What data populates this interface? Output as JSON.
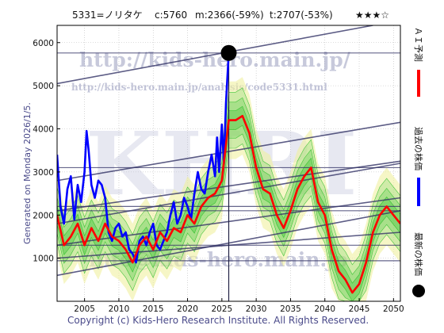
{
  "header": {
    "stock": "5331=ノリタケ",
    "close": "c:5760",
    "m_value": "m:2366(-59%)",
    "t_value": "t:2707(-53%)",
    "rating": "★★★☆"
  },
  "side_label": "Generated on Monday 2026/1/5.",
  "watermarks": {
    "url_main": "http://kids-hero.main.jp/",
    "url_analysis": "http://kids-hero.main.jp/analysis/code5331.html",
    "logo_text": "KHRI",
    "email": "info@kids-hero.main.jp"
  },
  "copyright": "Copyright (c) Kids-Hero Research Institute. All Rights Reserved.",
  "legend": [
    {
      "label": "ＡＩ予測",
      "color": "#ff0000",
      "marker": "line"
    },
    {
      "label": "過去の株価",
      "color": "#0000ff",
      "marker": "line"
    },
    {
      "label": "最新の株価",
      "color": "#000000",
      "marker": "dot"
    }
  ],
  "colors": {
    "ai_forecast": "#ff0000",
    "past_price": "#0000ff",
    "latest_marker": "#000000",
    "trend_lines": "#333366",
    "band_green": "#22bb22",
    "band_yellow": "#f0f0a0"
  },
  "chart_data": {
    "type": "line",
    "xlim": [
      2001,
      2051
    ],
    "ylim": [
      0,
      6400
    ],
    "x_ticks": [
      "2005",
      "2010",
      "2015",
      "2020",
      "2025",
      "2030",
      "2035",
      "2040",
      "2045",
      "2050"
    ],
    "y_ticks": [
      "1000",
      "2000",
      "3000",
      "4000",
      "5000",
      "6000"
    ],
    "grid": true,
    "current": {
      "x": 2026.0,
      "y": 5760
    },
    "series": [
      {
        "role": "past_price",
        "x": [
          2001,
          2001.5,
          2002,
          2002.5,
          2003,
          2003.5,
          2004,
          2004.5,
          2005,
          2005.3,
          2005.6,
          2006,
          2006.5,
          2007,
          2007.5,
          2008,
          2008.5,
          2009,
          2009.5,
          2010,
          2010.5,
          2011,
          2011.5,
          2012,
          2012.5,
          2013,
          2013.5,
          2014,
          2014.5,
          2015,
          2015.5,
          2016,
          2016.5,
          2017,
          2017.5,
          2018,
          2018.5,
          2019,
          2019.5,
          2020,
          2020.5,
          2021,
          2021.5,
          2022,
          2022.5,
          2023,
          2023.5,
          2024,
          2024.3,
          2024.6,
          2025,
          2025.3,
          2025.6,
          2026
        ],
        "values": [
          3400,
          2200,
          1800,
          2600,
          2900,
          1900,
          2700,
          2300,
          3000,
          3950,
          3500,
          2700,
          2400,
          2800,
          2700,
          2400,
          1600,
          1400,
          1700,
          1800,
          1500,
          1600,
          1200,
          1100,
          900,
          1400,
          1500,
          1300,
          1600,
          1800,
          1300,
          1200,
          1400,
          1600,
          2000,
          2300,
          1800,
          2000,
          2400,
          2200,
          1900,
          2500,
          3000,
          2600,
          2500,
          3000,
          3400,
          2900,
          3800,
          3000,
          4100,
          3200,
          4600,
          5760
        ]
      },
      {
        "role": "ai_forecast",
        "x": [
          2001,
          2002,
          2003,
          2004,
          2005,
          2006,
          2007,
          2008,
          2009,
          2010,
          2011,
          2012,
          2013,
          2014,
          2015,
          2016,
          2017,
          2018,
          2019,
          2020,
          2021,
          2022,
          2023,
          2024,
          2025,
          2026,
          2027,
          2028,
          2029,
          2030,
          2031,
          2032,
          2033,
          2034,
          2035,
          2036,
          2037,
          2038,
          2039,
          2040,
          2041,
          2042,
          2043,
          2044,
          2045,
          2046,
          2047,
          2048,
          2049,
          2050,
          2051
        ],
        "values": [
          2000,
          1300,
          1500,
          1800,
          1300,
          1700,
          1400,
          1800,
          1500,
          1400,
          1200,
          900,
          1300,
          1500,
          1200,
          1600,
          1400,
          1700,
          1600,
          2000,
          1800,
          2200,
          2400,
          2500,
          2800,
          4200,
          4200,
          4300,
          3900,
          3100,
          2600,
          2500,
          2000,
          1700,
          2100,
          2600,
          2900,
          3100,
          2300,
          2000,
          1200,
          700,
          500,
          200,
          400,
          900,
          1600,
          2000,
          2200,
          2000,
          1800
        ]
      }
    ],
    "trend_lines": [
      {
        "x": [
          2001,
          2047
        ],
        "values": [
          5050,
          6400
        ]
      },
      {
        "x": [
          2001,
          2051
        ],
        "values": [
          2800,
          4150
        ]
      },
      {
        "x": [
          2001,
          2051
        ],
        "values": [
          2100,
          3250
        ]
      },
      {
        "x": [
          2001,
          2051
        ],
        "values": [
          1800,
          3200
        ]
      },
      {
        "x": [
          2001,
          2051
        ],
        "values": [
          1300,
          2400
        ]
      },
      {
        "x": [
          2001,
          2051
        ],
        "values": [
          600,
          2100
        ]
      },
      {
        "x": [
          2001,
          2051
        ],
        "values": [
          1000,
          1600
        ]
      }
    ],
    "hlines": [
      5760,
      3100,
      2200,
      2100,
      1300,
      940
    ]
  }
}
